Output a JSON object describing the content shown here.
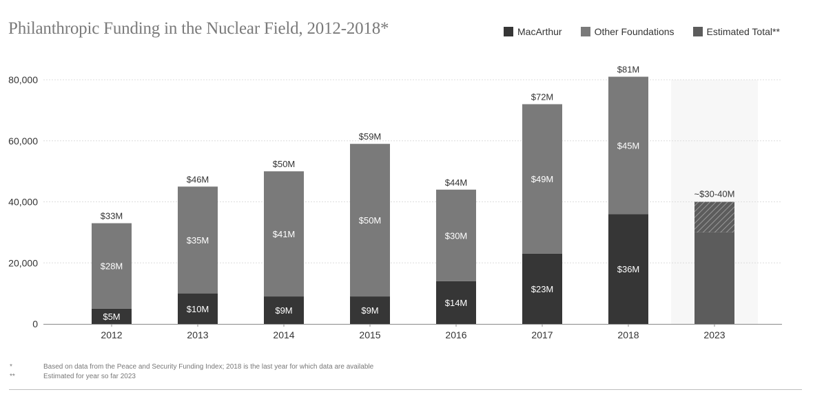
{
  "title": "Philanthropic Funding in the Nuclear Field, 2012-2018*",
  "legend": [
    {
      "label": "MacArthur",
      "color": "#363636"
    },
    {
      "label": "Other Foundations",
      "color": "#7a7a7a"
    },
    {
      "label": "Estimated Total**",
      "color": "#5c5c5c"
    }
  ],
  "footnotes": [
    {
      "mark": "*",
      "text": "Based on data from the Peace and Security Funding Index; 2018 is the last year for which data are available"
    },
    {
      "mark": "**",
      "text": "Estimated for year so far 2023"
    }
  ],
  "chart_data": {
    "type": "bar",
    "stacked": true,
    "title": "Philanthropic Funding in the Nuclear Field, 2012-2018*",
    "xlabel": "",
    "ylabel": "",
    "ylim": [
      0,
      80000
    ],
    "yticks": [
      0,
      20000,
      40000,
      60000,
      80000
    ],
    "ytick_labels": [
      "0",
      "20,000",
      "40,000",
      "60,000",
      "80,000"
    ],
    "grid": true,
    "legend_position": "top-right",
    "categories": [
      "2012",
      "2013",
      "2014",
      "2015",
      "2016",
      "2017",
      "2018"
    ],
    "series": [
      {
        "name": "MacArthur",
        "color": "#363636",
        "values": [
          5000,
          10000,
          9000,
          9000,
          14000,
          23000,
          36000
        ],
        "labels": [
          "$5M",
          "$10M",
          "$9M",
          "$9M",
          "$14M",
          "$23M",
          "$36M"
        ]
      },
      {
        "name": "Other Foundations",
        "color": "#7a7a7a",
        "values": [
          28000,
          35000,
          41000,
          50000,
          30000,
          49000,
          45000
        ],
        "labels": [
          "$28M",
          "$35M",
          "$41M",
          "$50M",
          "$30M",
          "$49M",
          "$45M"
        ]
      }
    ],
    "totals": [
      33000,
      46000,
      50000,
      59000,
      44000,
      72000,
      81000
    ],
    "total_labels": [
      "$33M",
      "$46M",
      "$50M",
      "$59M",
      "$44M",
      "$72M",
      "$81M"
    ],
    "estimate": {
      "category": "2023",
      "series": "Estimated Total**",
      "color": "#5c5c5c",
      "low": 30000,
      "high": 40000,
      "label": "~$30-40M",
      "highlighted": true
    }
  }
}
